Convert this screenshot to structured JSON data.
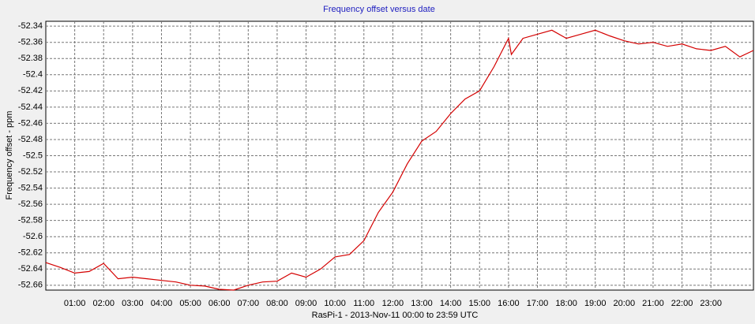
{
  "chart_data": {
    "type": "line",
    "title": "Frequency offset versus date",
    "x_label": "RasPi-1  -  2013-Nov-11 00:00 to 23:59 UTC",
    "y_label": "Frequency offset - ppm",
    "grid": true,
    "xlim": [
      0,
      24.47
    ],
    "ylim": [
      -52.666,
      -52.334
    ],
    "xticks": [
      {
        "value": 1,
        "label": "01:00"
      },
      {
        "value": 2,
        "label": "02:00"
      },
      {
        "value": 3,
        "label": "03:00"
      },
      {
        "value": 4,
        "label": "04:00"
      },
      {
        "value": 5,
        "label": "05:00"
      },
      {
        "value": 6,
        "label": "06:00"
      },
      {
        "value": 7,
        "label": "07:00"
      },
      {
        "value": 8,
        "label": "08:00"
      },
      {
        "value": 9,
        "label": "09:00"
      },
      {
        "value": 10,
        "label": "10:00"
      },
      {
        "value": 11,
        "label": "11:00"
      },
      {
        "value": 12,
        "label": "12:00"
      },
      {
        "value": 13,
        "label": "13:00"
      },
      {
        "value": 14,
        "label": "14:00"
      },
      {
        "value": 15,
        "label": "15:00"
      },
      {
        "value": 16,
        "label": "16:00"
      },
      {
        "value": 17,
        "label": "17:00"
      },
      {
        "value": 18,
        "label": "18:00"
      },
      {
        "value": 19,
        "label": "19:00"
      },
      {
        "value": 20,
        "label": "20:00"
      },
      {
        "value": 21,
        "label": "21:00"
      },
      {
        "value": 22,
        "label": "22:00"
      },
      {
        "value": 23,
        "label": "23:00"
      }
    ],
    "yticks": [
      -52.34,
      -52.36,
      -52.38,
      -52.4,
      -52.42,
      -52.44,
      -52.46,
      -52.48,
      -52.5,
      -52.52,
      -52.54,
      -52.56,
      -52.58,
      -52.6,
      -52.62,
      -52.64,
      -52.66
    ],
    "series": [
      {
        "name": "RasPi-1",
        "color": "#d40000",
        "x": [
          0,
          0.5,
          1,
          1.5,
          2,
          2.5,
          3,
          3.5,
          4,
          4.5,
          5,
          5.5,
          6,
          6.5,
          7,
          7.5,
          8,
          8.5,
          9,
          9.5,
          10,
          10.5,
          11,
          11.5,
          12,
          12.5,
          13,
          13.5,
          14,
          14.5,
          15,
          15.5,
          16,
          16.1,
          16.5,
          17,
          17.5,
          18,
          18.5,
          19,
          19.5,
          20,
          20.5,
          21,
          21.5,
          22,
          22.5,
          23,
          23.5,
          24,
          24.47
        ],
        "values": [
          -52.632,
          -52.638,
          -52.645,
          -52.643,
          -52.633,
          -52.652,
          -52.65,
          -52.652,
          -52.654,
          -52.656,
          -52.66,
          -52.661,
          -52.665,
          -52.666,
          -52.66,
          -52.656,
          -52.655,
          -52.645,
          -52.65,
          -52.64,
          -52.625,
          -52.622,
          -52.605,
          -52.57,
          -52.545,
          -52.51,
          -52.482,
          -52.47,
          -52.448,
          -52.43,
          -52.42,
          -52.39,
          -52.355,
          -52.375,
          -52.355,
          -52.35,
          -52.345,
          -52.355,
          -52.35,
          -52.345,
          -52.352,
          -52.358,
          -52.362,
          -52.36,
          -52.365,
          -52.362,
          -52.368,
          -52.37,
          -52.365,
          -52.378,
          -52.37
        ]
      }
    ]
  }
}
